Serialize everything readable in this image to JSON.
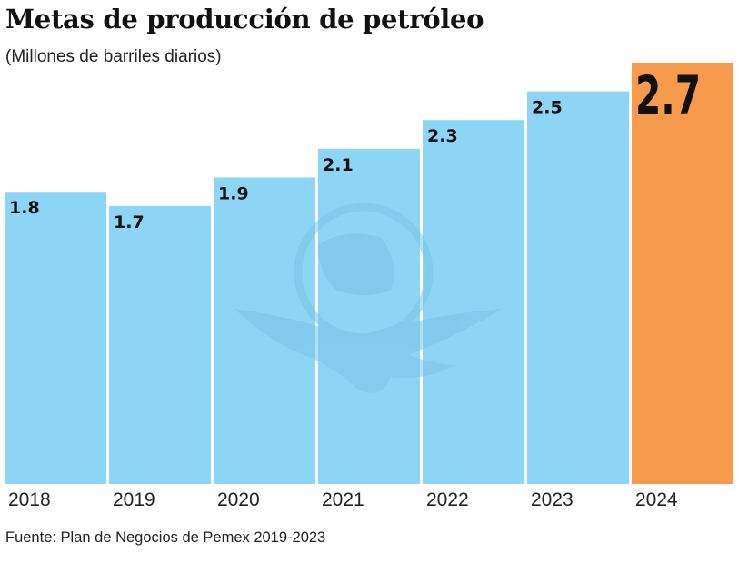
{
  "chart_data": {
    "type": "bar",
    "title": "Metas de producción de petróleo",
    "subtitle": "(Millones de barriles diarios)",
    "xlabel": "",
    "ylabel": "",
    "categories": [
      "2018",
      "2019",
      "2020",
      "2021",
      "2022",
      "2023",
      "2024"
    ],
    "values": [
      1.8,
      1.7,
      1.9,
      2.1,
      2.3,
      2.5,
      2.7
    ],
    "value_labels": [
      "1.8",
      "1.7",
      "1.9",
      "2.1",
      "2.3",
      "2.5",
      "2.7"
    ],
    "highlight_index": 6,
    "grid": false,
    "legend": "none",
    "source": "Fuente: Plan de Negocios de Pemex 2019-2023",
    "colors": {
      "bar": "#8dd5f5",
      "highlight": "#f79a4b",
      "watermark": "#7fc3e3",
      "text": "#111111"
    }
  }
}
